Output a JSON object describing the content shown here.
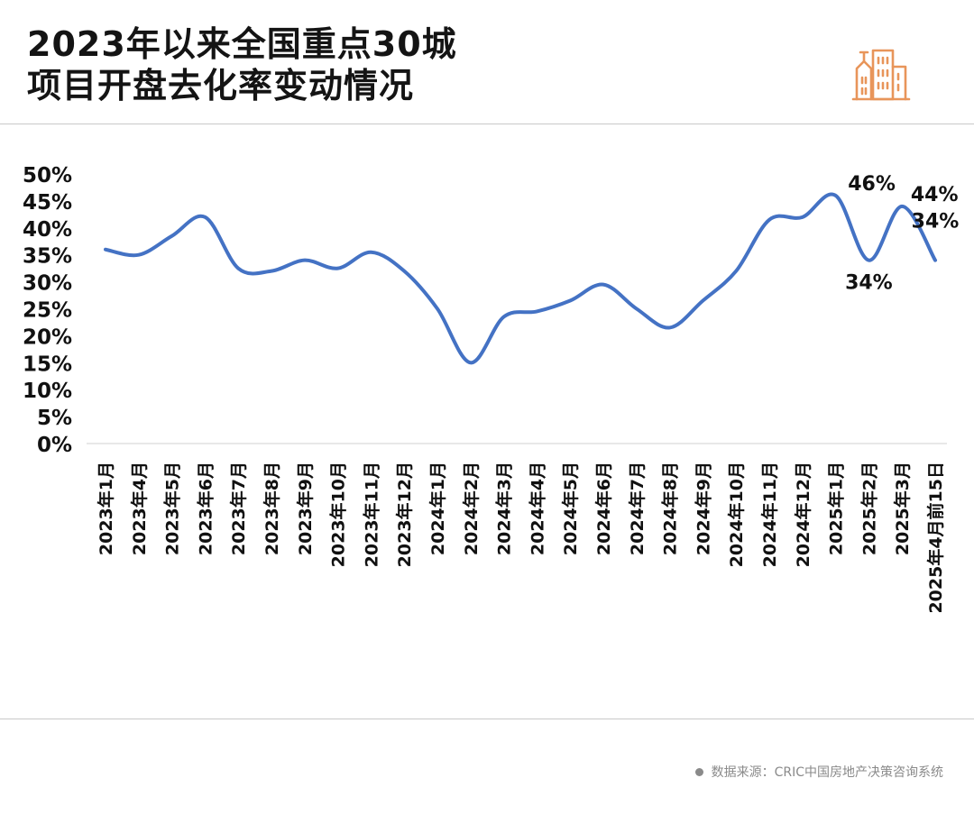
{
  "header": {
    "title_line1": "2023年以来全国重点30城",
    "title_line2": "项目开盘去化率变动情况",
    "logo_icon": "city-buildings-icon"
  },
  "source": {
    "text": "数据来源：CRIC中国房地产决策咨询系统"
  },
  "colors": {
    "line": "#4472C4",
    "logo": "#E8955A",
    "gridline": "#d9d9d9"
  },
  "chart_data": {
    "type": "line",
    "categories": [
      "2023年1月",
      "2023年4月",
      "2023年5月",
      "2023年6月",
      "2023年7月",
      "2023年8月",
      "2023年9月",
      "2023年10月",
      "2023年11月",
      "2023年12月",
      "2024年1月",
      "2024年2月",
      "2024年3月",
      "2024年4月",
      "2024年5月",
      "2024年6月",
      "2024年7月",
      "2024年8月",
      "2024年9月",
      "2024年10月",
      "2024年11月",
      "2024年12月",
      "2025年1月",
      "2025年2月",
      "2025年3月",
      "2025年4月前15日"
    ],
    "series": [
      {
        "values": [
          36,
          35,
          38.5,
          42,
          32.5,
          32,
          34,
          32.5,
          35.5,
          32,
          25,
          15,
          23.5,
          24.5,
          26.5,
          29.5,
          25,
          21.5,
          26.5,
          32,
          41.5,
          42,
          46,
          34,
          44,
          34
        ]
      }
    ],
    "data_labels": [
      {
        "index": 22,
        "text": "46%"
      },
      {
        "index": 23,
        "text": "34%"
      },
      {
        "index": 24,
        "text": "44%"
      },
      {
        "index": 25,
        "text": "34%"
      }
    ],
    "yticks": [
      "0%",
      "5%",
      "10%",
      "15%",
      "20%",
      "25%",
      "30%",
      "35%",
      "40%",
      "45%",
      "50%"
    ],
    "ylim": [
      0,
      50
    ],
    "grid": false,
    "legend": "none"
  }
}
